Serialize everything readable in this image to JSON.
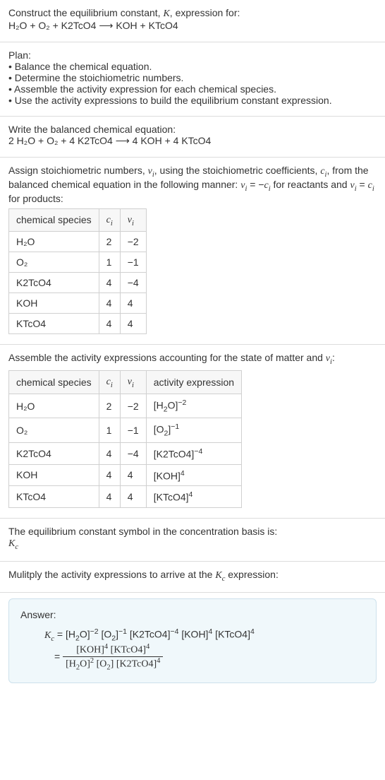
{
  "intro": {
    "line1": "Construct the equilibrium constant, K, expression for:",
    "equation": "H₂O + O₂ + K2TcO4 ⟶ KOH + KTcO4"
  },
  "plan": {
    "title": "Plan:",
    "items": [
      "Balance the chemical equation.",
      "Determine the stoichiometric numbers.",
      "Assemble the activity expression for each chemical species.",
      "Use the activity expressions to build the equilibrium constant expression."
    ]
  },
  "balanced": {
    "title": "Write the balanced chemical equation:",
    "equation": "2 H₂O + O₂ + 4 K2TcO4 ⟶ 4 KOH + 4 KTcO4"
  },
  "stoich": {
    "intro": "Assign stoichiometric numbers, νᵢ, using the stoichiometric coefficients, cᵢ, from the balanced chemical equation in the following manner: νᵢ = −cᵢ for reactants and νᵢ = cᵢ for products:",
    "headers": [
      "chemical species",
      "cᵢ",
      "νᵢ"
    ],
    "rows": [
      [
        "H₂O",
        "2",
        "−2"
      ],
      [
        "O₂",
        "1",
        "−1"
      ],
      [
        "K2TcO4",
        "4",
        "−4"
      ],
      [
        "KOH",
        "4",
        "4"
      ],
      [
        "KTcO4",
        "4",
        "4"
      ]
    ]
  },
  "activity": {
    "intro": "Assemble the activity expressions accounting for the state of matter and νᵢ:",
    "headers": [
      "chemical species",
      "cᵢ",
      "νᵢ",
      "activity expression"
    ],
    "rows": [
      [
        "H₂O",
        "2",
        "−2",
        "[H₂O]⁻²"
      ],
      [
        "O₂",
        "1",
        "−1",
        "[O₂]⁻¹"
      ],
      [
        "K2TcO4",
        "4",
        "−4",
        "[K2TcO4]⁻⁴"
      ],
      [
        "KOH",
        "4",
        "4",
        "[KOH]⁴"
      ],
      [
        "KTcO4",
        "4",
        "4",
        "[KTcO4]⁴"
      ]
    ]
  },
  "eqconst": {
    "line1": "The equilibrium constant symbol in the concentration basis is:",
    "symbol": "K_c"
  },
  "multiply": {
    "text": "Mulitply the activity expressions to arrive at the K_c expression:"
  },
  "answer": {
    "title": "Answer:",
    "line1": "K_c = [H₂O]⁻² [O₂]⁻¹ [K2TcO4]⁻⁴ [KOH]⁴ [KTcO4]⁴",
    "frac_num": "[KOH]⁴ [KTcO4]⁴",
    "frac_den": "[H₂O]² [O₂] [K2TcO4]⁴"
  }
}
